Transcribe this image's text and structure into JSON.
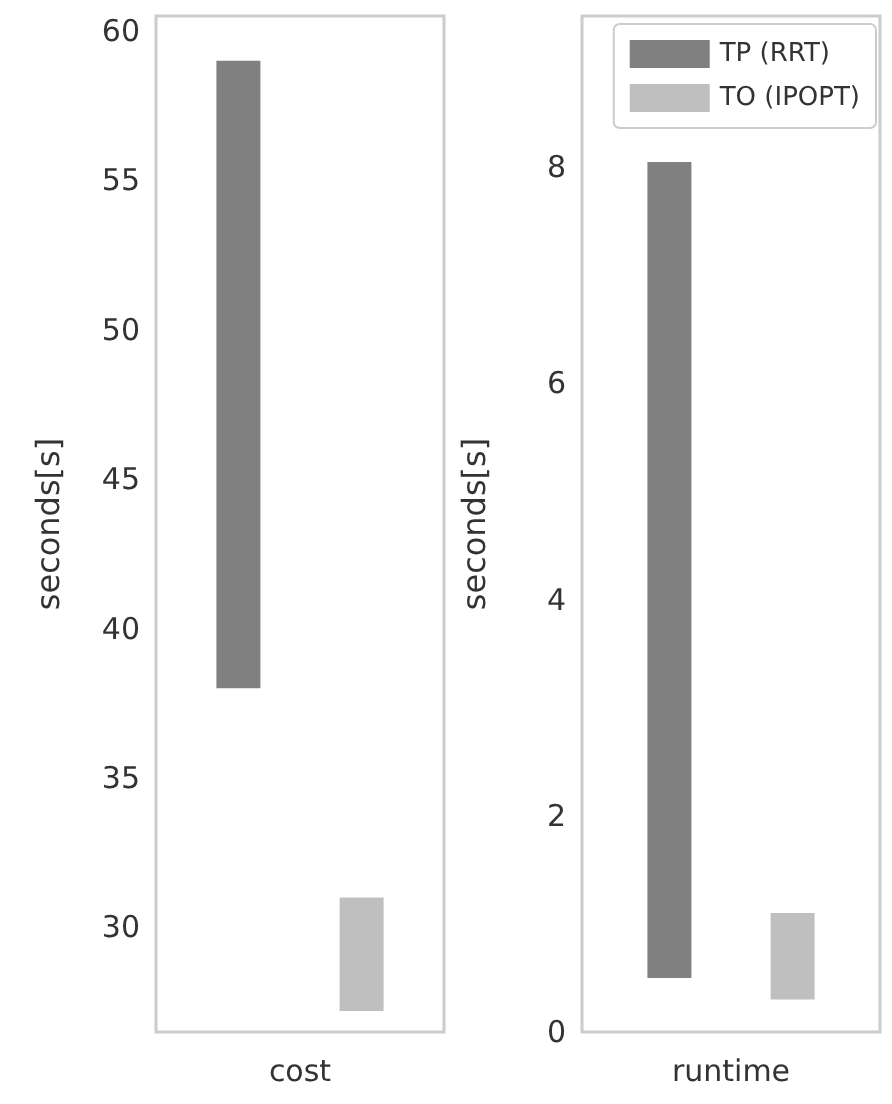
{
  "chart_data": [
    {
      "type": "bar",
      "categories": [
        "cost"
      ],
      "ylabel": "seconds[s]",
      "ylim": [
        26.5,
        60.5
      ],
      "yticks": [
        30,
        35,
        40,
        45,
        50,
        55,
        60
      ],
      "grid": false,
      "legend": false,
      "series": [
        {
          "color": "#808080",
          "base": [
            38
          ],
          "values": [
            21
          ]
        },
        {
          "color": "#bfbfbf",
          "base": [
            27.2
          ],
          "values": [
            3.8
          ]
        }
      ]
    },
    {
      "type": "bar",
      "categories": [
        "runtime"
      ],
      "ylabel": "seconds[s]",
      "ylim": [
        0,
        9.4
      ],
      "yticks": [
        0,
        2,
        4,
        6,
        8
      ],
      "grid": false,
      "legend": "top right",
      "series": [
        {
          "name": "TP (RRT)",
          "color": "#808080",
          "base": [
            0.5
          ],
          "values": [
            7.55
          ]
        },
        {
          "name": "TO (IPOPT)",
          "color": "#bfbfbf",
          "base": [
            0.3
          ],
          "values": [
            0.8
          ]
        }
      ]
    }
  ]
}
